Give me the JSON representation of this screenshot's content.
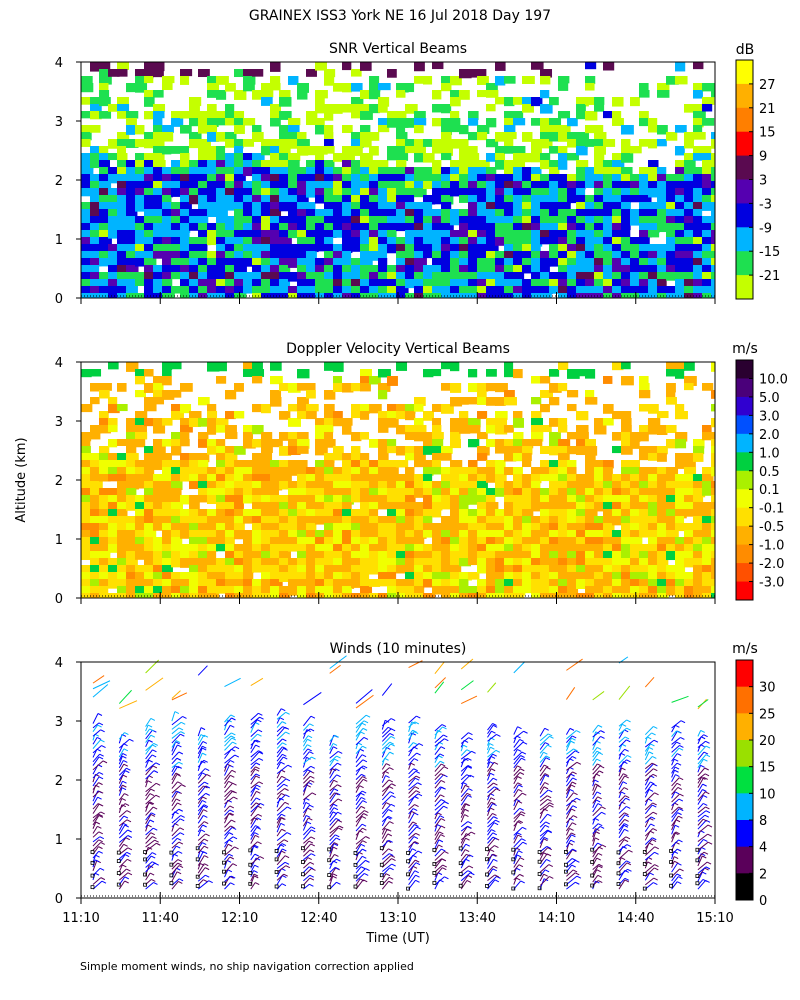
{
  "title": "GRAINEX ISS3 York NE  16 Jul 2018 Day 197",
  "ylabel": "Altitude (km)",
  "xlabel": "Time (UT)",
  "footnote": "Simple moment winds, no ship navigation correction applied",
  "x_ticks": [
    "11:10",
    "11:40",
    "12:10",
    "12:40",
    "13:10",
    "13:40",
    "14:10",
    "14:40",
    "15:10"
  ],
  "y_ticks": [
    "0",
    "1",
    "2",
    "3",
    "4"
  ],
  "chart_data": [
    {
      "type": "heatmap",
      "title": "SNR Vertical Beams",
      "units": "dB",
      "x": [
        "11:10",
        "15:10"
      ],
      "ylim": [
        0,
        4
      ],
      "colorbar": {
        "labels": [
          "27",
          "21",
          "15",
          "9",
          "3",
          "-3",
          "-9",
          "-15",
          "-21"
        ],
        "colors": [
          "#ffff00",
          "#ffb000",
          "#ff7f00",
          "#ff0000",
          "#5a0a50",
          "#5500b0",
          "#0000e0",
          "#00b4ff",
          "#1ee050",
          "#c4ff00"
        ]
      },
      "description_values": {
        "low_layer_top_km": 2.4,
        "dominant_low_layer": [
          "-3",
          "3",
          "-9"
        ],
        "upper_layer_values": [
          "-15",
          "-21"
        ]
      }
    },
    {
      "type": "heatmap",
      "title": "Doppler Velocity Vertical Beams",
      "units": "m/s",
      "x": [
        "11:10",
        "15:10"
      ],
      "ylim": [
        0,
        4
      ],
      "colorbar": {
        "labels": [
          "10.0",
          "5.0",
          "3.0",
          "2.0",
          "1.0",
          "0.5",
          "0.1",
          "-0.1",
          "-0.5",
          "-1.0",
          "-2.0",
          "-3.0"
        ],
        "colors": [
          "#2a0030",
          "#4a007a",
          "#3000d0",
          "#0050ff",
          "#00b4ff",
          "#00d040",
          "#aaf000",
          "#f0ff00",
          "#ffe000",
          "#ffb000",
          "#ff8c00",
          "#ff5000",
          "#ff0000"
        ]
      },
      "description_values": {
        "low_layer_top_km": 2.4,
        "dominant_low_layer": [
          "-0.5",
          "-1.0",
          "-0.1"
        ]
      }
    },
    {
      "type": "scatter",
      "title": "Winds (10 minutes)",
      "units": "m/s",
      "x": [
        "11:10",
        "15:10"
      ],
      "ylim": [
        0,
        4
      ],
      "colorbar": {
        "labels": [
          "30",
          "25",
          "20",
          "15",
          "10",
          "8",
          "4",
          "2",
          "0"
        ],
        "colors": [
          "#ff0000",
          "#ff7000",
          "#ffb000",
          "#9ae000",
          "#00e040",
          "#00b4ff",
          "#0000ff",
          "#5a005a",
          "#000000"
        ]
      },
      "profile_times": [
        "11:10",
        "11:20",
        "11:30",
        "11:40",
        "11:50",
        "12:00",
        "12:10",
        "12:20",
        "12:30",
        "12:40",
        "12:50",
        "13:00",
        "13:10",
        "13:20",
        "13:30",
        "13:40",
        "13:50",
        "14:00",
        "14:10",
        "14:20",
        "14:30",
        "14:40",
        "14:50",
        "15:00"
      ],
      "barb_top_km": 2.7,
      "dominant_speed_class": [
        "8",
        "4"
      ]
    }
  ]
}
